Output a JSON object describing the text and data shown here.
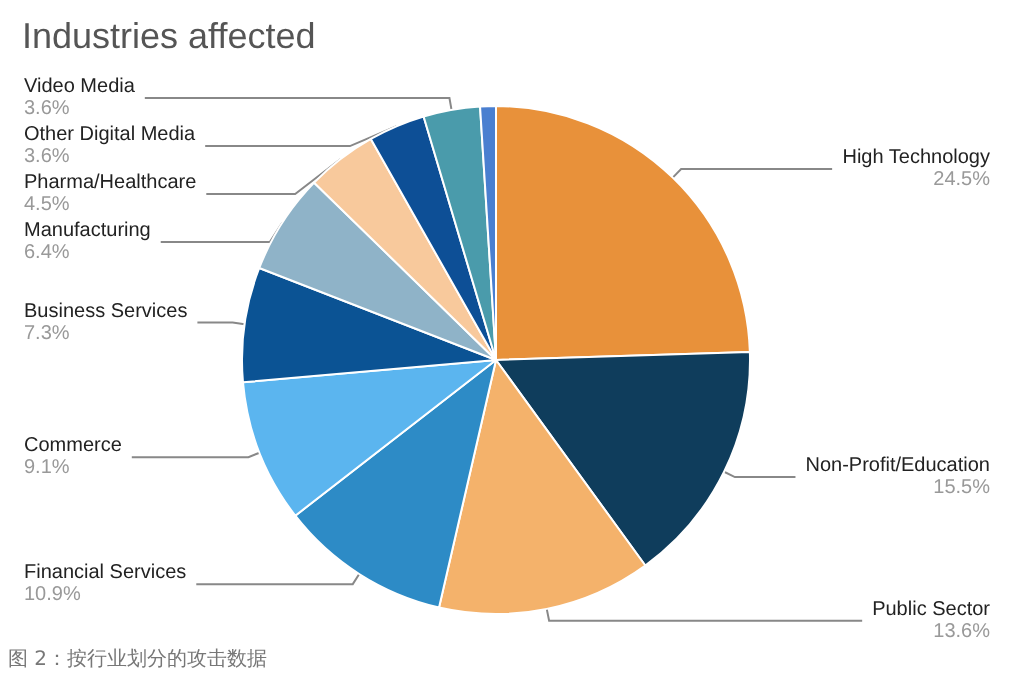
{
  "chart_data": {
    "type": "pie",
    "title": "Industries affected",
    "categories": [
      "High Technology",
      "Non-Profit/Education",
      "Public Sector",
      "Financial Services",
      "Commerce",
      "Business Services",
      "Manufacturing",
      "Pharma/Healthcare",
      "Other Digital Media",
      "Video Media",
      null
    ],
    "values": [
      24.5,
      15.5,
      13.6,
      10.9,
      9.1,
      7.3,
      6.4,
      4.5,
      3.6,
      3.6,
      1.0
    ],
    "value_labels": [
      "24.5%",
      "15.5%",
      "13.6%",
      "10.9%",
      "9.1%",
      "7.3%",
      "6.4%",
      "4.5%",
      "3.6%",
      "3.6%",
      null
    ],
    "colors": [
      "#e8913a",
      "#0f3d5c",
      "#f4b26b",
      "#2d8bc6",
      "#5bb5ef",
      "#0b5394",
      "#8fb3c8",
      "#f8c99c",
      "#0d4f96",
      "#4a9bab",
      "#4a7fd0"
    ],
    "legend": false,
    "annotations": [
      "图 2：按行业划分的攻击数据"
    ]
  }
}
